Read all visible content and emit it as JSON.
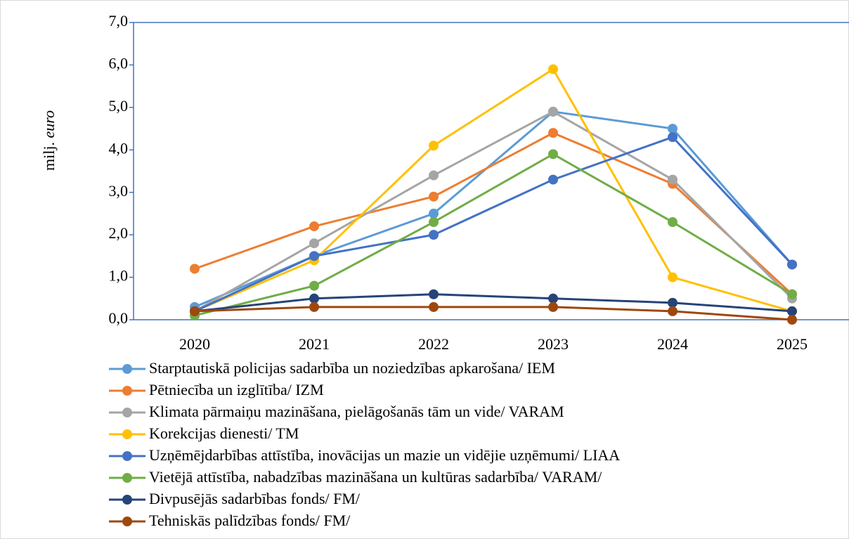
{
  "chart_data": {
    "type": "line",
    "y_label": "milj.",
    "y_label_unit": "euro",
    "categories": [
      "2020",
      "2021",
      "2022",
      "2023",
      "2024",
      "2025"
    ],
    "series": [
      {
        "name": "Starptautiskā policijas sadarbība un noziedzības apkarošana/ IEM",
        "color": "#5b9bd5",
        "values": [
          0.3,
          1.5,
          2.5,
          4.9,
          4.5,
          1.3
        ]
      },
      {
        "name": "Pētniecība un izglītība/ IZM",
        "color": "#ed7d31",
        "values": [
          1.2,
          2.2,
          2.9,
          4.4,
          3.2,
          0.6
        ]
      },
      {
        "name": "Klimata pārmaiņu mazināšana, pielāgošanās tām un vide/  VARAM",
        "color": "#a5a5a5",
        "values": [
          0.2,
          1.8,
          3.4,
          4.9,
          3.3,
          0.5
        ]
      },
      {
        "name": "Korekcijas dienesti/ TM",
        "color": "#ffc000",
        "values": [
          0.2,
          1.4,
          4.1,
          5.9,
          1.0,
          0.2
        ]
      },
      {
        "name": "Uzņēmējdarbības attīstība, inovācijas un mazie un vidējie uzņēmumi/ LIAA",
        "color": "#4472c4",
        "values": [
          0.2,
          1.5,
          2.0,
          3.3,
          4.3,
          1.3
        ]
      },
      {
        "name": "Vietējā attīstība, nabadzības mazināšana un kultūras sadarbība/ VARAM/",
        "color": "#70ad47",
        "values": [
          0.1,
          0.8,
          2.3,
          3.9,
          2.3,
          0.6
        ]
      },
      {
        "name": "Divpusējās sadarbības fonds/ FM/",
        "color": "#264478",
        "values": [
          0.2,
          0.5,
          0.6,
          0.5,
          0.4,
          0.2
        ]
      },
      {
        "name": "Tehniskās palīdzības fonds/ FM/",
        "color": "#9e480e",
        "values": [
          0.2,
          0.3,
          0.3,
          0.3,
          0.2,
          0.0
        ]
      }
    ],
    "ylim": [
      0,
      7
    ],
    "yticks": [
      {
        "value": 0,
        "label": "0,0"
      },
      {
        "value": 1,
        "label": "1,0"
      },
      {
        "value": 2,
        "label": "2,0"
      },
      {
        "value": 3,
        "label": "3,0"
      },
      {
        "value": 4,
        "label": "4,0"
      },
      {
        "value": 5,
        "label": "5,0"
      },
      {
        "value": 6,
        "label": "6,0"
      },
      {
        "value": 7,
        "label": "7,0"
      }
    ],
    "legend": "bottom"
  }
}
